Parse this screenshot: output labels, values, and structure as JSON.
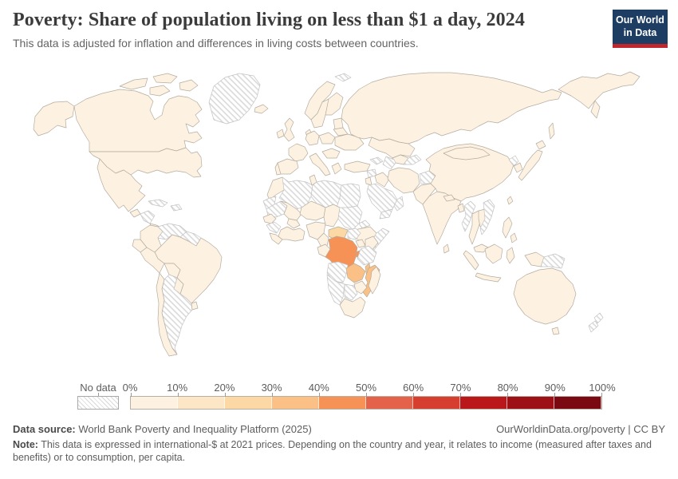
{
  "header": {
    "title": "Poverty: Share of population living on less than $1 a day, 2024",
    "subtitle": "This data is adjusted for inflation and differences in living costs between countries.",
    "logo": {
      "line1": "Our World",
      "line2": "in Data",
      "bg_color": "#1d3d63",
      "accent_color": "#c0262d"
    }
  },
  "legend": {
    "no_data_label": "No data",
    "tick_labels": [
      "0%",
      "10%",
      "20%",
      "30%",
      "40%",
      "50%",
      "60%",
      "70%",
      "80%",
      "90%",
      "100%"
    ]
  },
  "chart_data": {
    "type": "choropleth-map",
    "title": "Poverty: Share of population living on less than $1 a day",
    "year": 2024,
    "unit": "% of population",
    "projection": "world",
    "legend_position": "bottom",
    "legend_buckets": [
      {
        "range": "0-10%",
        "color": "#fdf2e1"
      },
      {
        "range": "10-20%",
        "color": "#fce6c6"
      },
      {
        "range": "20-30%",
        "color": "#fbd8a4"
      },
      {
        "range": "30-40%",
        "color": "#fac085"
      },
      {
        "range": "40-50%",
        "color": "#f79257"
      },
      {
        "range": "50-60%",
        "color": "#e4614a"
      },
      {
        "range": "60-70%",
        "color": "#d63e30"
      },
      {
        "range": "70-80%",
        "color": "#ba171b"
      },
      {
        "range": "80-90%",
        "color": "#9d1015"
      },
      {
        "range": "90-100%",
        "color": "#7b0911"
      }
    ],
    "no_data_style": "white-grey-diagonal-hatch",
    "countries": [
      {
        "id": "canada",
        "name": "Canada",
        "bucket": "0-10%"
      },
      {
        "id": "united-states",
        "name": "United States",
        "bucket": "0-10%"
      },
      {
        "id": "greenland",
        "name": "Greenland",
        "bucket": "no-data"
      },
      {
        "id": "iceland",
        "name": "Iceland",
        "bucket": "0-10%"
      },
      {
        "id": "svalbard",
        "name": "Svalbard",
        "bucket": "no-data"
      },
      {
        "id": "mexico",
        "name": "Mexico",
        "bucket": "0-10%"
      },
      {
        "id": "guatemala",
        "name": "Guatemala",
        "bucket": "0-10%"
      },
      {
        "id": "honduras-nicaragua",
        "name": "Honduras/Nicaragua",
        "bucket": "no-data"
      },
      {
        "id": "costa-rica-panama",
        "name": "Costa Rica/Panama",
        "bucket": "0-10%"
      },
      {
        "id": "cuba",
        "name": "Cuba",
        "bucket": "no-data"
      },
      {
        "id": "hispaniola",
        "name": "Haiti/Dominican Rep.",
        "bucket": "no-data"
      },
      {
        "id": "colombia",
        "name": "Colombia",
        "bucket": "0-10%"
      },
      {
        "id": "venezuela",
        "name": "Venezuela",
        "bucket": "no-data"
      },
      {
        "id": "guyanas",
        "name": "Guyana/Suriname",
        "bucket": "no-data"
      },
      {
        "id": "ecuador",
        "name": "Ecuador",
        "bucket": "0-10%"
      },
      {
        "id": "peru",
        "name": "Peru",
        "bucket": "0-10%"
      },
      {
        "id": "brazil",
        "name": "Brazil",
        "bucket": "0-10%"
      },
      {
        "id": "bolivia",
        "name": "Bolivia",
        "bucket": "0-10%"
      },
      {
        "id": "paraguay",
        "name": "Paraguay",
        "bucket": "0-10%"
      },
      {
        "id": "uruguay",
        "name": "Uruguay",
        "bucket": "0-10%"
      },
      {
        "id": "chile",
        "name": "Chile",
        "bucket": "0-10%"
      },
      {
        "id": "argentina",
        "name": "Argentina",
        "bucket": "no-data"
      },
      {
        "id": "ireland",
        "name": "Ireland",
        "bucket": "0-10%"
      },
      {
        "id": "united-kingdom",
        "name": "United Kingdom",
        "bucket": "0-10%"
      },
      {
        "id": "norway",
        "name": "Norway",
        "bucket": "0-10%"
      },
      {
        "id": "sweden",
        "name": "Sweden",
        "bucket": "0-10%"
      },
      {
        "id": "finland",
        "name": "Finland",
        "bucket": "0-10%"
      },
      {
        "id": "denmark",
        "name": "Denmark",
        "bucket": "0-10%"
      },
      {
        "id": "baltics",
        "name": "Baltic states",
        "bucket": "0-10%"
      },
      {
        "id": "france",
        "name": "France",
        "bucket": "0-10%"
      },
      {
        "id": "spain",
        "name": "Spain",
        "bucket": "0-10%"
      },
      {
        "id": "portugal",
        "name": "Portugal",
        "bucket": "0-10%"
      },
      {
        "id": "germany",
        "name": "Germany",
        "bucket": "0-10%"
      },
      {
        "id": "poland",
        "name": "Poland",
        "bucket": "0-10%"
      },
      {
        "id": "belarus",
        "name": "Belarus",
        "bucket": "0-10%"
      },
      {
        "id": "ukraine",
        "name": "Ukraine",
        "bucket": "0-10%"
      },
      {
        "id": "balkans",
        "name": "Romania/Balkans",
        "bucket": "0-10%"
      },
      {
        "id": "italy",
        "name": "Italy",
        "bucket": "0-10%"
      },
      {
        "id": "greece",
        "name": "Greece",
        "bucket": "0-10%"
      },
      {
        "id": "turkey",
        "name": "Turkey",
        "bucket": "0-10%"
      },
      {
        "id": "russia",
        "name": "Russia",
        "bucket": "0-10%"
      },
      {
        "id": "kazakhstan",
        "name": "Kazakhstan",
        "bucket": "0-10%"
      },
      {
        "id": "uzbekistan",
        "name": "Uzbekistan",
        "bucket": "0-10%"
      },
      {
        "id": "turkmenistan",
        "name": "Turkmenistan",
        "bucket": "no-data"
      },
      {
        "id": "kyrgyzstan-tajikistan",
        "name": "Kyrgyzstan/Tajikistan",
        "bucket": "no-data"
      },
      {
        "id": "caucasus",
        "name": "Azerbaijan",
        "bucket": "no-data"
      },
      {
        "id": "syria",
        "name": "Syria",
        "bucket": "no-data"
      },
      {
        "id": "levant",
        "name": "Israel/Jordan",
        "bucket": "0-10%"
      },
      {
        "id": "iraq",
        "name": "Iraq",
        "bucket": "0-10%"
      },
      {
        "id": "saudi-arabia",
        "name": "Saudi Arabia",
        "bucket": "no-data"
      },
      {
        "id": "yemen",
        "name": "Yemen",
        "bucket": "no-data"
      },
      {
        "id": "oman",
        "name": "Oman",
        "bucket": "no-data"
      },
      {
        "id": "iran",
        "name": "Iran",
        "bucket": "0-10%"
      },
      {
        "id": "afghanistan",
        "name": "Afghanistan",
        "bucket": "no-data"
      },
      {
        "id": "pakistan",
        "name": "Pakistan",
        "bucket": "0-10%"
      },
      {
        "id": "india",
        "name": "India",
        "bucket": "0-10%"
      },
      {
        "id": "sri-lanka",
        "name": "Sri Lanka",
        "bucket": "0-10%"
      },
      {
        "id": "nepal",
        "name": "Nepal",
        "bucket": "0-10%"
      },
      {
        "id": "bangladesh",
        "name": "Bangladesh",
        "bucket": "0-10%"
      },
      {
        "id": "myanmar",
        "name": "Myanmar",
        "bucket": "no-data"
      },
      {
        "id": "thailand",
        "name": "Thailand",
        "bucket": "0-10%"
      },
      {
        "id": "laos-cambodia",
        "name": "Laos/Cambodia",
        "bucket": "0-10%"
      },
      {
        "id": "vietnam",
        "name": "Vietnam",
        "bucket": "no-data"
      },
      {
        "id": "malaysia",
        "name": "Malaysia",
        "bucket": "0-10%"
      },
      {
        "id": "china",
        "name": "China",
        "bucket": "0-10%"
      },
      {
        "id": "mongolia",
        "name": "Mongolia",
        "bucket": "0-10%"
      },
      {
        "id": "north-korea",
        "name": "North Korea",
        "bucket": "no-data"
      },
      {
        "id": "south-korea",
        "name": "South Korea",
        "bucket": "0-10%"
      },
      {
        "id": "japan",
        "name": "Japan",
        "bucket": "0-10%"
      },
      {
        "id": "taiwan",
        "name": "Taiwan",
        "bucket": "0-10%"
      },
      {
        "id": "philippines",
        "name": "Philippines",
        "bucket": "0-10%"
      },
      {
        "id": "indonesia",
        "name": "Indonesia",
        "bucket": "0-10%"
      },
      {
        "id": "papua-new-guinea",
        "name": "Papua New Guinea",
        "bucket": "no-data"
      },
      {
        "id": "australia",
        "name": "Australia",
        "bucket": "0-10%"
      },
      {
        "id": "new-zealand",
        "name": "New Zealand",
        "bucket": "no-data"
      },
      {
        "id": "morocco",
        "name": "Morocco",
        "bucket": "0-10%"
      },
      {
        "id": "western-sahara",
        "name": "Western Sahara",
        "bucket": "no-data"
      },
      {
        "id": "algeria",
        "name": "Algeria",
        "bucket": "no-data"
      },
      {
        "id": "tunisia",
        "name": "Tunisia",
        "bucket": "0-10%"
      },
      {
        "id": "libya",
        "name": "Libya",
        "bucket": "no-data"
      },
      {
        "id": "egypt",
        "name": "Egypt",
        "bucket": "no-data"
      },
      {
        "id": "mauritania",
        "name": "Mauritania",
        "bucket": "no-data"
      },
      {
        "id": "mali",
        "name": "Mali",
        "bucket": "0-10%"
      },
      {
        "id": "senegal",
        "name": "Senegal",
        "bucket": "0-10%"
      },
      {
        "id": "guinea",
        "name": "Guinea",
        "bucket": "no-data"
      },
      {
        "id": "sierra-leone-liberia",
        "name": "Sierra Leone/Liberia",
        "bucket": "0-10%"
      },
      {
        "id": "burkina-faso",
        "name": "Burkina Faso",
        "bucket": "0-10%"
      },
      {
        "id": "cote-divoire-ghana",
        "name": "Côte d'Ivoire/Ghana",
        "bucket": "0-10%"
      },
      {
        "id": "niger",
        "name": "Niger",
        "bucket": "0-10%"
      },
      {
        "id": "nigeria",
        "name": "Nigeria",
        "bucket": "0-10%"
      },
      {
        "id": "chad",
        "name": "Chad",
        "bucket": "0-10%"
      },
      {
        "id": "sudan",
        "name": "Sudan",
        "bucket": "no-data"
      },
      {
        "id": "eritrea",
        "name": "Eritrea",
        "bucket": "no-data"
      },
      {
        "id": "ethiopia",
        "name": "Ethiopia",
        "bucket": "0-10%"
      },
      {
        "id": "somalia",
        "name": "Somalia",
        "bucket": "no-data"
      },
      {
        "id": "cameroon",
        "name": "Cameroon",
        "bucket": "0-10%"
      },
      {
        "id": "central-african-republic",
        "name": "Central African Republic",
        "bucket": "20-30%"
      },
      {
        "id": "south-sudan",
        "name": "South Sudan",
        "bucket": "no-data"
      },
      {
        "id": "uganda",
        "name": "Uganda",
        "bucket": "0-10%"
      },
      {
        "id": "kenya",
        "name": "Kenya",
        "bucket": "0-10%"
      },
      {
        "id": "gabon-congo",
        "name": "Gabon/Congo",
        "bucket": "0-10%"
      },
      {
        "id": "dr-congo",
        "name": "Democratic Republic of Congo",
        "bucket": "40-50%"
      },
      {
        "id": "burundi",
        "name": "Burundi",
        "bucket": "40-50%"
      },
      {
        "id": "tanzania",
        "name": "Tanzania",
        "bucket": "no-data"
      },
      {
        "id": "angola",
        "name": "Angola",
        "bucket": "no-data"
      },
      {
        "id": "zambia",
        "name": "Zambia",
        "bucket": "30-40%"
      },
      {
        "id": "malawi",
        "name": "Malawi",
        "bucket": "30-40%"
      },
      {
        "id": "mozambique",
        "name": "Mozambique",
        "bucket": "30-40%"
      },
      {
        "id": "zimbabwe",
        "name": "Zimbabwe",
        "bucket": "0-10%"
      },
      {
        "id": "botswana",
        "name": "Botswana",
        "bucket": "no-data"
      },
      {
        "id": "namibia",
        "name": "Namibia",
        "bucket": "no-data"
      },
      {
        "id": "south-africa",
        "name": "South Africa",
        "bucket": "0-10%"
      },
      {
        "id": "madagascar",
        "name": "Madagascar",
        "bucket": "0-10%"
      }
    ]
  },
  "footer": {
    "source_label": "Data source:",
    "source_text": " World Bank Poverty and Inequality Platform (2025)",
    "link_text": "OurWorldinData.org/poverty | CC BY",
    "note_label": "Note:",
    "note_text": " This data is expressed in international-$ at 2021 prices. Depending on the country and year, it relates to income (measured after taxes and benefits) or to consumption, per capita."
  }
}
